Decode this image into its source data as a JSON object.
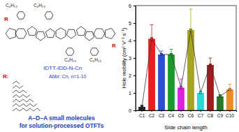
{
  "chart_data": {
    "type": "bar",
    "xlabel": "Side chain length",
    "ylabel": "Hole mobility (cm² V⁻¹ s⁻¹)",
    "categories": [
      "C1",
      "C2",
      "C3",
      "C4",
      "C5",
      "C6",
      "C7",
      "C8",
      "C9",
      "C10"
    ],
    "values": [
      0.2,
      4.1,
      3.2,
      3.2,
      1.3,
      4.6,
      1.0,
      2.6,
      0.8,
      1.2
    ],
    "errors": [
      0.1,
      0.8,
      0.2,
      0.3,
      0.5,
      1.2,
      0.1,
      0.4,
      0.1,
      0.3
    ],
    "colors": [
      "#222222",
      "#e8201c",
      "#2a4fd6",
      "#1a9a2a",
      "#e020e0",
      "#a4a421",
      "#2ad6d6",
      "#a01c1c",
      "#2a7a2a",
      "#f08a24"
    ],
    "ylim": [
      0,
      6
    ],
    "yticks": [
      0,
      1,
      2,
      3,
      4,
      5,
      6
    ],
    "line_style": "solid",
    "marker": "square"
  },
  "molecule": {
    "name": "IDTT-IDD-N-Cn",
    "abbr": "Abbr: Cn, n=1-10",
    "substituents": [
      "C₆H₁₃",
      "C₆H₁₃",
      "C₆H₁₃",
      "C₆H₁₃"
    ],
    "r_labels": [
      "R",
      "R"
    ],
    "r_key": "R:",
    "caption": [
      "A–D–A small molecules",
      "for solution-processed OTFTs"
    ]
  }
}
